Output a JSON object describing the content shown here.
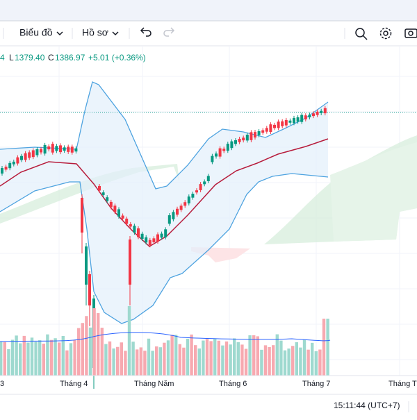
{
  "toolbar": {
    "chart_menu": "Biểu đồ",
    "profile_menu": "Hồ sơ"
  },
  "legend": {
    "open_cut": "4",
    "low_label": "L",
    "low": "1379.40",
    "close_label": "C",
    "close": "1386.97",
    "change": "+5.01 (+0.36%)"
  },
  "x_axis": {
    "labels": [
      "3",
      "Tháng 4",
      "Tháng Năm",
      "Tháng 6",
      "Tháng 7",
      "Tháng T"
    ]
  },
  "status": {
    "time": "15:11:44 (UTC+7)"
  }
}
